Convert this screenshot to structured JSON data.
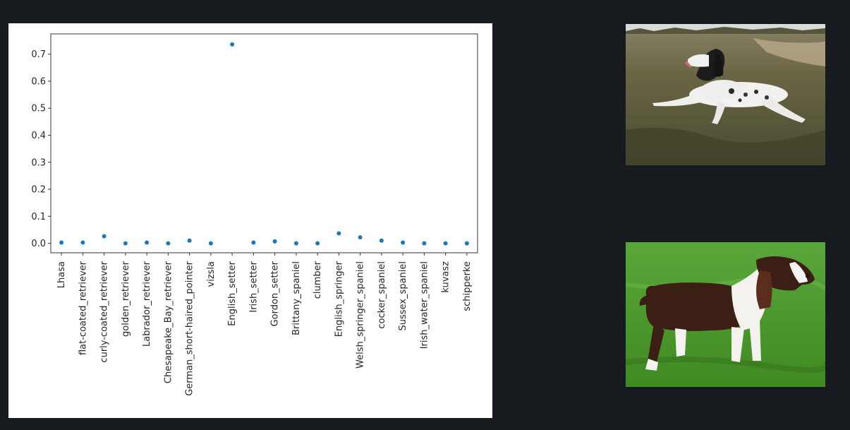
{
  "chart_data": {
    "type": "scatter",
    "title": "",
    "xlabel": "",
    "ylabel": "",
    "ylim": [
      -0.035,
      0.775
    ],
    "yticks": [
      0.0,
      0.1,
      0.2,
      0.3,
      0.4,
      0.5,
      0.6,
      0.7
    ],
    "ytick_labels": [
      "0.0",
      "0.1",
      "0.2",
      "0.3",
      "0.4",
      "0.5",
      "0.6",
      "0.7"
    ],
    "grid": false,
    "point_color": "#1f77b4",
    "categories": [
      "Lhasa",
      "flat-coated_retriever",
      "curly-coated_retriever",
      "golden_retriever",
      "Labrador_retriever",
      "Chesapeake_Bay_retriever",
      "German_short-haired_pointer",
      "vizsla",
      "English_setter",
      "Irish_setter",
      "Gordon_setter",
      "Brittany_spaniel",
      "clumber",
      "English_springer",
      "Welsh_springer_spaniel",
      "cocker_spaniel",
      "Sussex_spaniel",
      "Irish_water_spaniel",
      "kuvasz",
      "schipperke"
    ],
    "values": [
      0.003,
      0.003,
      0.026,
      0.0,
      0.003,
      0.0,
      0.01,
      0.0,
      0.736,
      0.003,
      0.007,
      0.0,
      0.0,
      0.037,
      0.022,
      0.01,
      0.003,
      0.0,
      0.0,
      0.0
    ]
  },
  "images": [
    {
      "icon": "english-setter-photo",
      "colors": {
        "ground": "#5b5a3e",
        "sky": "#d8dcd8",
        "dog": "#f0f0ee"
      }
    },
    {
      "icon": "english-springer-spaniel-photo",
      "colors": {
        "grass": "#4c9a2a",
        "dog_dark": "#3b1e14",
        "dog_white": "#f4f2ee"
      }
    }
  ]
}
